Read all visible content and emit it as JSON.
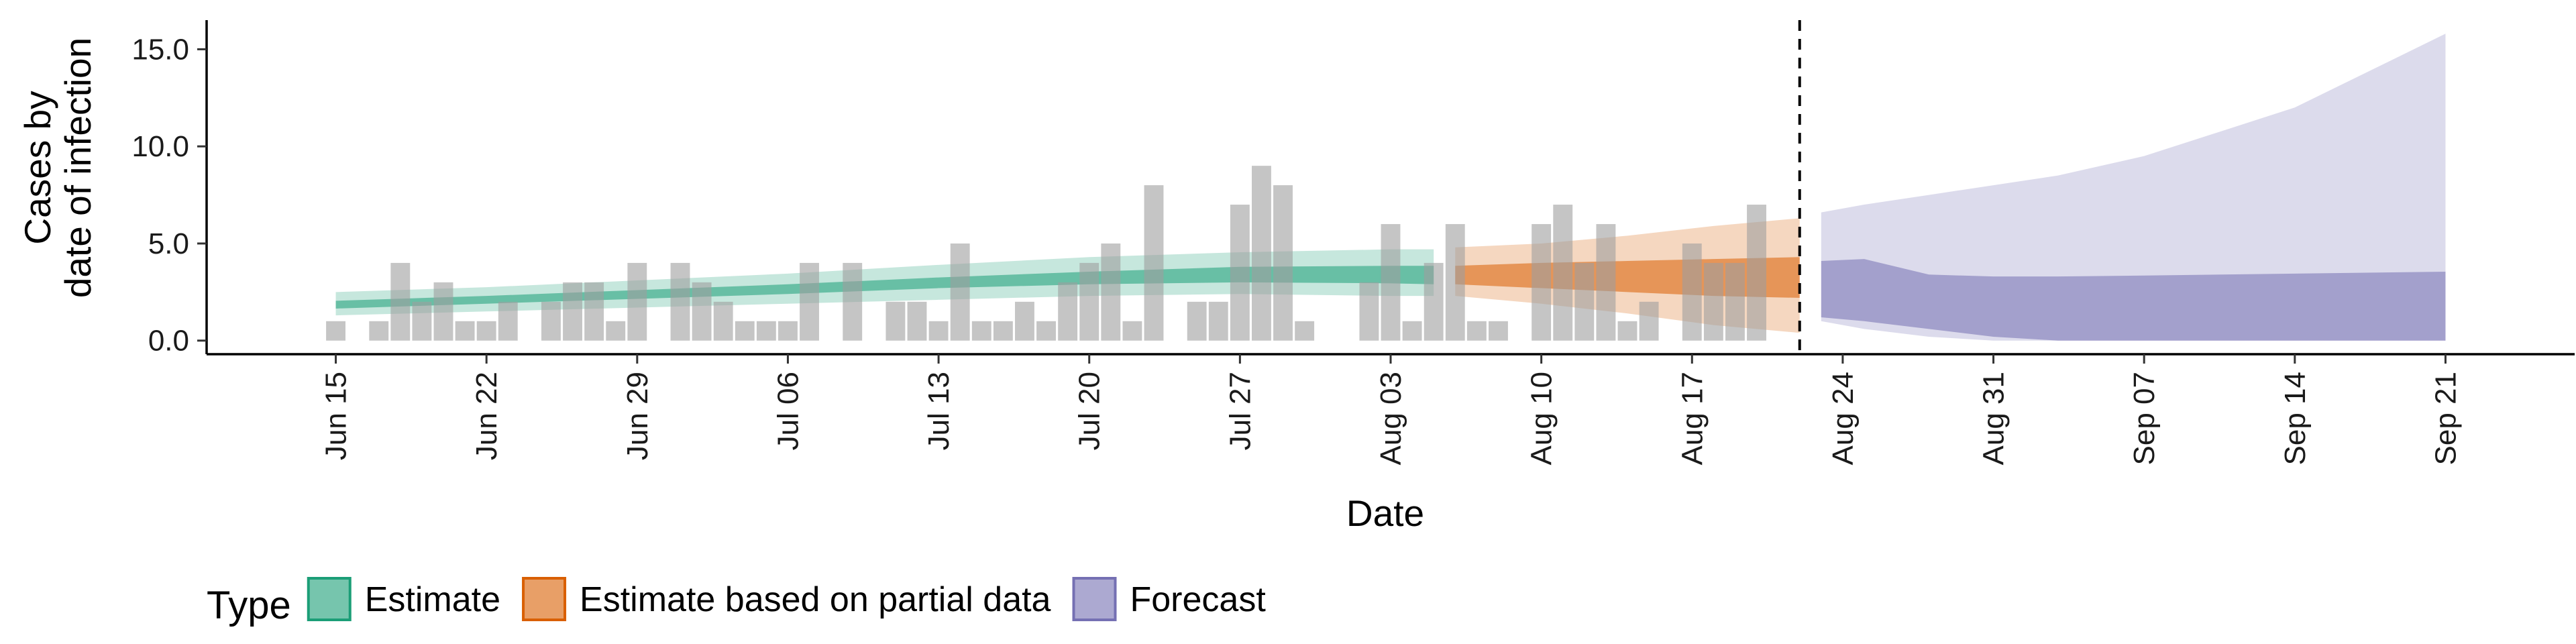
{
  "chart_data": {
    "type": "area",
    "xlabel": "Date",
    "ylabel_line1": "Cases by",
    "ylabel_line2": "date of infection",
    "x_range": [
      "2020-06-09",
      "2020-09-27"
    ],
    "y_range": [
      -0.7,
      16.5
    ],
    "y_ticks": [
      0,
      5,
      10,
      15
    ],
    "y_tick_labels": [
      "0.0",
      "5.0",
      "10.0",
      "15.0"
    ],
    "x_ticks": [
      "2020-06-15",
      "2020-06-22",
      "2020-06-29",
      "2020-07-06",
      "2020-07-13",
      "2020-07-20",
      "2020-07-27",
      "2020-08-03",
      "2020-08-10",
      "2020-08-17",
      "2020-08-24",
      "2020-08-31",
      "2020-09-07",
      "2020-09-14",
      "2020-09-21"
    ],
    "x_tick_labels": [
      "Jun 15",
      "Jun 22",
      "Jun 29",
      "Jul 06",
      "Jul 13",
      "Jul 20",
      "Jul 27",
      "Aug 03",
      "Aug 10",
      "Aug 17",
      "Aug 24",
      "Aug 31",
      "Sep 07",
      "Sep 14",
      "Sep 21"
    ],
    "forecast_cutoff_date": "2020-08-22",
    "reported_cases": {
      "start_date": "2020-06-15",
      "values": [
        1,
        0,
        1,
        4,
        2,
        3,
        1,
        1,
        2,
        0,
        2,
        3,
        3,
        1,
        4,
        0,
        4,
        3,
        2,
        1,
        1,
        1,
        4,
        0,
        4,
        0,
        2,
        2,
        1,
        5,
        1,
        1,
        2,
        1,
        3,
        4,
        5,
        1,
        8,
        0,
        2,
        2,
        7,
        9,
        8,
        1,
        0,
        0,
        3,
        6,
        1,
        4,
        6,
        1,
        1,
        0,
        6,
        7,
        4,
        6,
        1,
        2,
        0,
        5,
        4,
        4,
        7,
        0,
        0
      ]
    },
    "series": [
      {
        "name": "Estimate",
        "color": "#1b9e77",
        "dates": [
          "2020-06-15",
          "2020-06-22",
          "2020-06-29",
          "2020-07-06",
          "2020-07-13",
          "2020-07-20",
          "2020-07-27",
          "2020-08-03",
          "2020-08-05"
        ],
        "lower90": [
          1.3,
          1.5,
          1.7,
          1.9,
          2.1,
          2.3,
          2.4,
          2.3,
          2.3
        ],
        "lower50": [
          1.65,
          1.9,
          2.15,
          2.4,
          2.7,
          2.9,
          3.0,
          2.95,
          2.9
        ],
        "upper50": [
          2.05,
          2.3,
          2.6,
          2.9,
          3.25,
          3.55,
          3.8,
          3.85,
          3.85
        ],
        "upper90": [
          2.5,
          2.75,
          3.1,
          3.45,
          3.9,
          4.3,
          4.55,
          4.7,
          4.7
        ]
      },
      {
        "name": "Estimate based on partial data",
        "color": "#d95f02",
        "dates": [
          "2020-08-06",
          "2020-08-10",
          "2020-08-14",
          "2020-08-18",
          "2020-08-22"
        ],
        "lower90": [
          2.3,
          1.9,
          1.4,
          0.8,
          0.4
        ],
        "lower50": [
          2.9,
          2.7,
          2.5,
          2.3,
          2.2
        ],
        "upper50": [
          3.85,
          4.0,
          4.1,
          4.2,
          4.3
        ],
        "upper90": [
          4.8,
          5.0,
          5.4,
          5.9,
          6.3
        ]
      },
      {
        "name": "Forecast",
        "color": "#7570b3",
        "dates": [
          "2020-08-23",
          "2020-08-25",
          "2020-08-28",
          "2020-08-31",
          "2020-09-03",
          "2020-09-07",
          "2020-09-14",
          "2020-09-21"
        ],
        "lower90": [
          1.0,
          0.6,
          0.2,
          0.0,
          0.0,
          0.0,
          0.0,
          0.0
        ],
        "lower50": [
          1.2,
          1.0,
          0.6,
          0.2,
          0.0,
          0.0,
          0.0,
          0.0
        ],
        "upper50": [
          4.1,
          4.2,
          3.4,
          3.3,
          3.3,
          3.35,
          3.45,
          3.55
        ],
        "upper90": [
          6.6,
          7.0,
          7.5,
          8.0,
          8.5,
          9.5,
          12.0,
          15.8
        ]
      }
    ],
    "legend": {
      "title": "Type",
      "position": "bottom",
      "entries": [
        "Estimate",
        "Estimate based on partial data",
        "Forecast"
      ]
    },
    "grid": false
  }
}
